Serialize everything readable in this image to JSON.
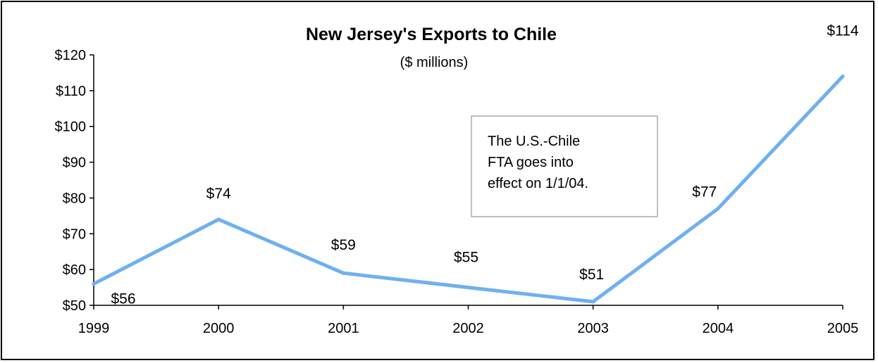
{
  "chart_data": {
    "type": "line",
    "title": "New Jersey's Exports to Chile",
    "subtitle": "($ millions)",
    "xlabel": "",
    "ylabel": "",
    "x": [
      "1999",
      "2000",
      "2001",
      "2002",
      "2003",
      "2004",
      "2005"
    ],
    "series": [
      {
        "values": [
          56,
          74,
          59,
          55,
          51,
          77,
          114
        ]
      }
    ],
    "data_labels": [
      "$56",
      "$74",
      "$59",
      "$55",
      "$51",
      "$77",
      "$114"
    ],
    "ylim": [
      50,
      120
    ],
    "y_ticks": [
      50,
      60,
      70,
      80,
      90,
      100,
      110,
      120
    ],
    "y_tick_labels": [
      "$50",
      "$60",
      "$70",
      "$80",
      "$90",
      "$100",
      "$110",
      "$120"
    ],
    "grid": false,
    "legend": "none",
    "annotation": {
      "lines": [
        "The U.S.-Chile",
        "FTA goes into",
        "effect on 1/1/04."
      ]
    },
    "colors": {
      "line": "#6fb0f0",
      "axis": "#000000",
      "box_border": "#808080"
    }
  }
}
